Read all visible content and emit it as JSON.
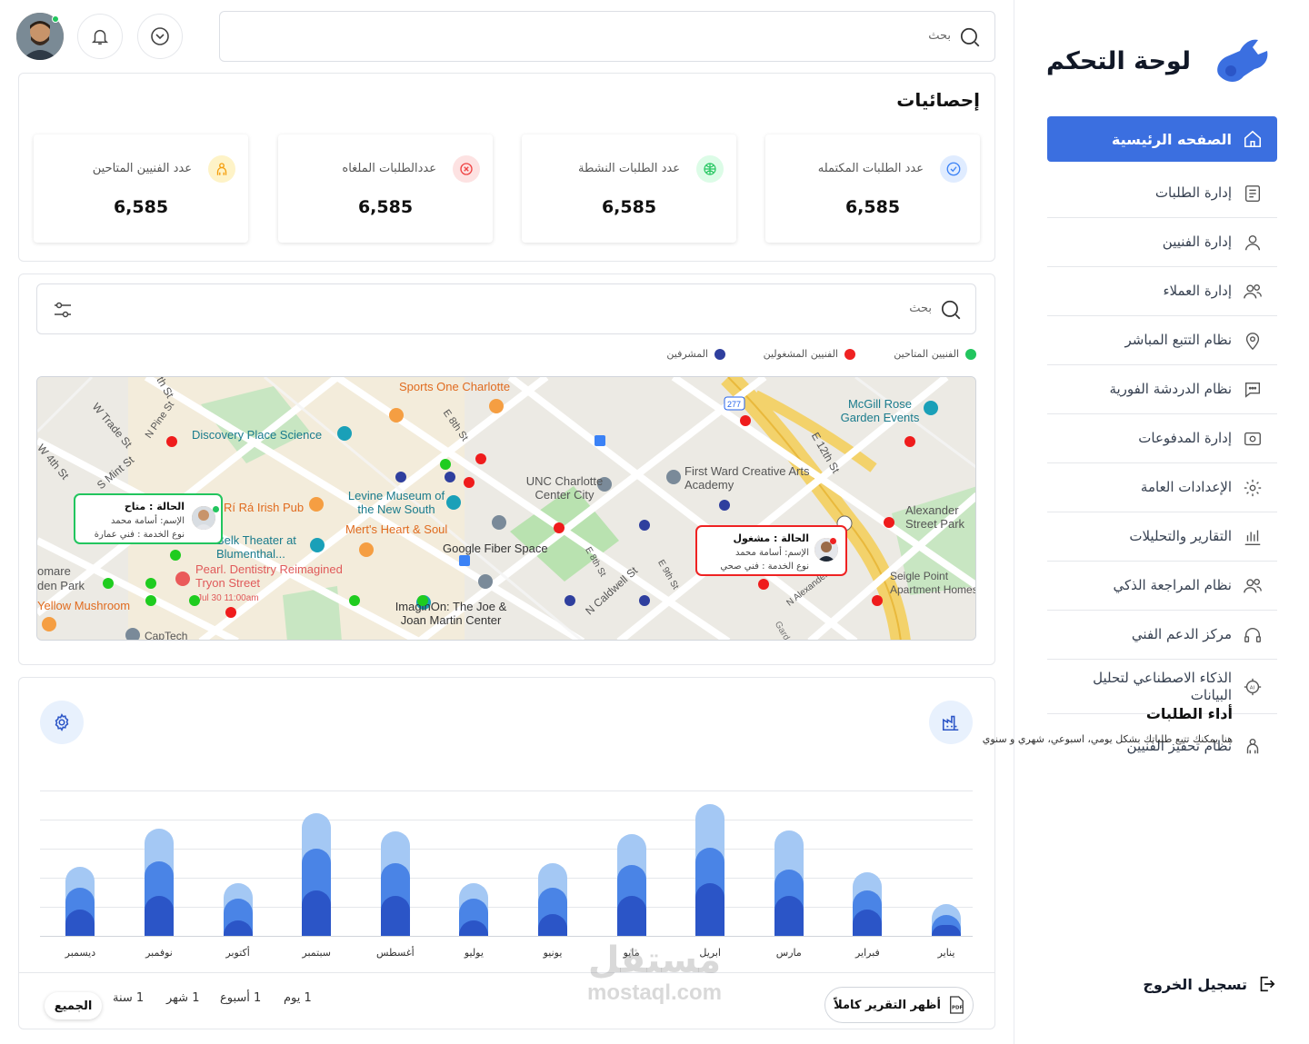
{
  "sidebar": {
    "title": "لوحة التحكم",
    "home": "الصفحه الرئيسية",
    "items": [
      {
        "label": "إدارة الطلبات"
      },
      {
        "label": "إدارة الفنيين"
      },
      {
        "label": "إدارة العملاء"
      },
      {
        "label": "نظام التتبع المباشر"
      },
      {
        "label": "نظام الدردشة الفورية"
      },
      {
        "label": "إدارة المدفوعات"
      },
      {
        "label": "الإعدادات العامة"
      },
      {
        "label": "التقارير والتحليلات"
      },
      {
        "label": "نظام المراجعة الذكي"
      },
      {
        "label": "مركز الدعم الفني"
      },
      {
        "label": "الذكاء الاصطناعي لتحليل البيانات"
      },
      {
        "label": "نظام تحفيز الفنيين"
      }
    ],
    "logout": "تسجيل الخروج"
  },
  "header": {
    "search_placeholder": "بحث"
  },
  "stats": {
    "title": "إحصائيات",
    "cards": [
      {
        "label": "عدد الطلبات المكتمله",
        "value": "6,585",
        "icon": "check-icon",
        "color": "#3b82f6"
      },
      {
        "label": "عدد الطلبات النشطة",
        "value": "6,585",
        "icon": "globe-icon",
        "color": "#22c55e"
      },
      {
        "label": "عددالطلبات الملغاه",
        "value": "6,585",
        "icon": "cancel-icon",
        "color": "#ef4444"
      },
      {
        "label": "عدد الفنيين المتاحين",
        "value": "6,585",
        "icon": "technician-icon",
        "color": "#f59e0b"
      }
    ]
  },
  "map_section": {
    "search_placeholder": "بحث",
    "legend": [
      {
        "label": "الفنيين المتاحين",
        "color": "#22c55e"
      },
      {
        "label": "الفنيين المشغولين",
        "color": "#ef2222"
      },
      {
        "label": "المشرفين",
        "color": "#2f3f9e"
      }
    ],
    "labels": [
      "Sports One Charlotte",
      "Discovery Place Science",
      "W Trade St",
      "N Pine St",
      "S Mint St",
      "W 4th St",
      "E 8th St",
      "UNC Charlotte Center City",
      "Levine Museum of the New South",
      "Mert's Heart & Soul",
      "Rí Rá Irish Pub",
      "Belk Theater at Blumenthal...",
      "Pearl. Dentistry Reimagined Tryon Street",
      "Jul 30 11:00am",
      "Google Fiber Space",
      "ImaginOn: The Joe & Joan Martin Center",
      "First Ward Creative Arts Academy",
      "McGill Rose Garden Events",
      "E 12th St",
      "Alexander Street Park",
      "Seigle Point Apartment Homes",
      "N Caldwell St",
      "E 9th St",
      "E 8th St",
      "N Alexander",
      "277",
      "CapTech",
      "Yellow Mushroom",
      "omare",
      "den Park",
      "th St",
      "Gard"
    ],
    "tooltips": [
      {
        "status": "الحالة : متاح",
        "name": "الإسم: أسامة محمد",
        "service": "نوع الخدمة : فني عمارة"
      },
      {
        "status": "الحالة : مشغول",
        "name": "الإسم: أسامة محمد",
        "service": "نوع الخدمة : فني صحي"
      }
    ]
  },
  "performance": {
    "title": "أداء الطلبات",
    "subtitle": "هنا يمكنك تتبع طلباتك بشكل يومي، اسبوعي، شهري و سنوي",
    "filters": [
      "1 يوم",
      "1 أسبوع",
      "1 شهر",
      "1 سنة",
      "الجميع"
    ],
    "active_filter": "الجميع",
    "report_button": "أظهر التقرير كاملاً"
  },
  "chart_data": {
    "type": "bar",
    "stacked": true,
    "categories": [
      "يناير",
      "فبراير",
      "مارس",
      "ابريل",
      "مايو",
      "يونيو",
      "يوليو",
      "أغسطس",
      "سبتمبر",
      "أكتوبر",
      "نوفمبر",
      "ديسمبر"
    ],
    "series": [
      {
        "values": [
          12,
          30,
          45,
          60,
          45,
          25,
          18,
          45,
          52,
          18,
          45,
          30
        ],
        "color": "#2b55c7"
      },
      {
        "values": [
          12,
          22,
          30,
          40,
          35,
          30,
          24,
          37,
          47,
          24,
          40,
          25
        ],
        "color": "#4a84e6"
      },
      {
        "values": [
          12,
          20,
          45,
          50,
          35,
          27,
          18,
          37,
          40,
          18,
          37,
          23
        ],
        "color": "#a4c8f4"
      }
    ],
    "ylim": [
      0,
      165
    ],
    "grid": true
  },
  "watermark": {
    "line1": "مستقل",
    "line2": "mostaql.com"
  }
}
